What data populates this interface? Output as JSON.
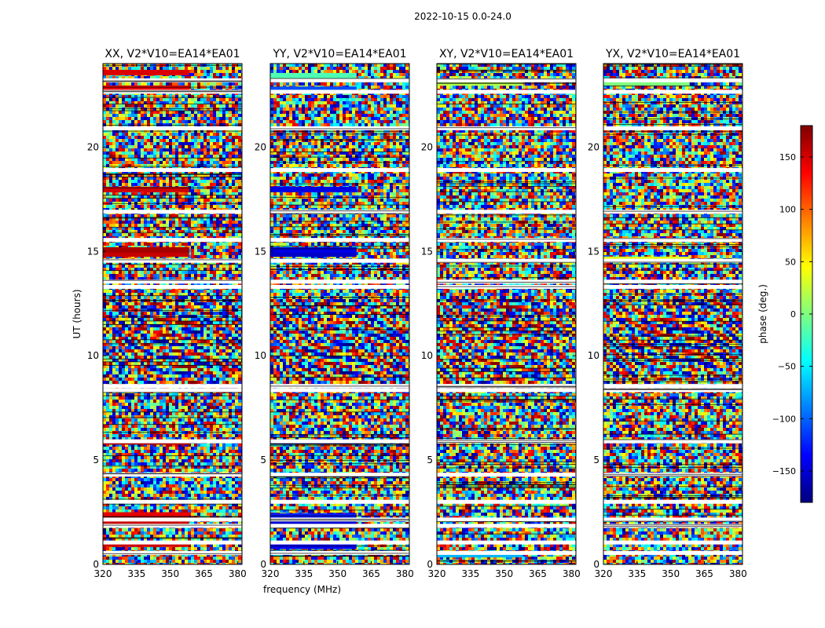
{
  "figure": {
    "suptitle": "2022-10-15 0.0-24.0",
    "xlabel": "frequency (MHz)",
    "ylabel": "UT (hours)"
  },
  "colorbar": {
    "label": "phase (deg.)",
    "colormap": "jet",
    "range": [
      -180,
      180
    ],
    "ticks": [
      -150,
      -100,
      -50,
      0,
      50,
      100,
      150
    ],
    "tick_labels": [
      "−150",
      "−100",
      "−50",
      "0",
      "50",
      "100",
      "150"
    ],
    "colors": [
      "#00007f",
      "#0000ff",
      "#007fff",
      "#00ffff",
      "#7fff7f",
      "#ffff00",
      "#ff7f00",
      "#ff0000",
      "#7f0000"
    ]
  },
  "chart_data": [
    {
      "type": "heatmap",
      "title": "XX, V2*V10=EA14*EA01",
      "xlabel": "",
      "ylabel": "UT (hours)",
      "xlim": [
        320,
        382
      ],
      "ylim": [
        0,
        24
      ],
      "xticks": [
        320,
        335,
        350,
        365,
        380
      ],
      "yticks": [
        0,
        5,
        10,
        15,
        20
      ],
      "value": "phase (deg.)"
    },
    {
      "type": "heatmap",
      "title": "YY, V2*V10=EA14*EA01",
      "xlabel": "frequency (MHz)",
      "ylabel": "",
      "xlim": [
        320,
        382
      ],
      "ylim": [
        0,
        24
      ],
      "xticks": [
        320,
        335,
        350,
        365,
        380
      ],
      "yticks": [
        0,
        5,
        10,
        15,
        20
      ],
      "value": "phase (deg.)"
    },
    {
      "type": "heatmap",
      "title": "XY, V2*V10=EA14*EA01",
      "xlabel": "",
      "ylabel": "",
      "xlim": [
        320,
        382
      ],
      "ylim": [
        0,
        24
      ],
      "xticks": [
        320,
        335,
        350,
        365,
        380
      ],
      "yticks": [
        0,
        5,
        10,
        15,
        20
      ],
      "value": "phase (deg.)"
    },
    {
      "type": "heatmap",
      "title": "YX, V2*V10=EA14*EA01",
      "xlabel": "",
      "ylabel": "",
      "xlim": [
        320,
        382
      ],
      "ylim": [
        0,
        24
      ],
      "xticks": [
        320,
        335,
        350,
        365,
        380
      ],
      "yticks": [
        0,
        5,
        10,
        15,
        20
      ],
      "value": "phase (deg.)"
    }
  ]
}
